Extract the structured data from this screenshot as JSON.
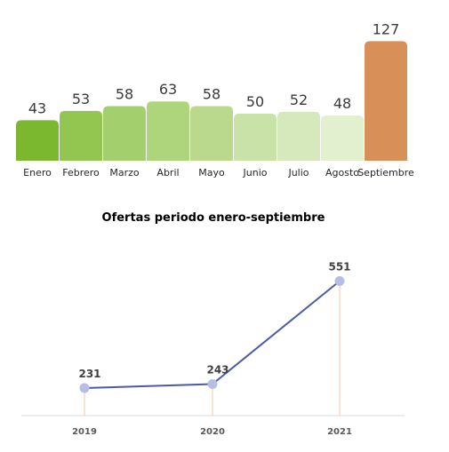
{
  "chart_data": [
    {
      "type": "bar",
      "categories": [
        "Enero",
        "Febrero",
        "Marzo",
        "Abril",
        "Mayo",
        "Junio",
        "Julio",
        "Agosto",
        "Septiembre"
      ],
      "values": [
        43,
        53,
        58,
        63,
        58,
        50,
        52,
        48,
        127
      ],
      "colors": [
        "#7cb82f",
        "#93c650",
        "#a3cf6c",
        "#afd57c",
        "#bad98c",
        "#c9e2a8",
        "#d6e9bd",
        "#e2f0d0",
        "#d99058"
      ],
      "title": "",
      "xlabel": "",
      "ylabel": "",
      "ylim": [
        0,
        135
      ],
      "grid": false,
      "legend": "none"
    },
    {
      "type": "line",
      "title": "Ofertas periodo enero-septiembre",
      "x": [
        "2019",
        "2020",
        "2021"
      ],
      "series": [
        {
          "values": [
            231,
            243,
            551
          ],
          "color": "#4a5aa8"
        }
      ],
      "xlabel": "",
      "ylabel": "",
      "ylim": [
        0,
        600
      ],
      "grid": false,
      "legend": "none",
      "marker_color": "#b8bde6",
      "drop_line_color": "#f3c9a9",
      "axis_color": "#d9d9d9"
    }
  ]
}
